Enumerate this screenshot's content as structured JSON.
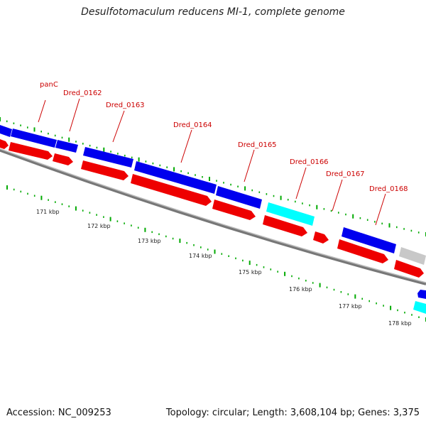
{
  "title": "Desulfotomaculum reducens MI-1, complete genome",
  "footer": {
    "accession": "Accession: NC_009253",
    "summary": "Topology: circular; Length: 3,608,104 bp; Genes: 3,375"
  },
  "gene_labels": [
    "panC",
    "Dred_0162",
    "Dred_0163",
    "Dred_0164",
    "Dred_0165",
    "Dred_0166",
    "Dred_0167",
    "Dred_0168"
  ],
  "kbp_labels": [
    "171 kbp",
    "172 kbp",
    "173 kbp",
    "174 kbp",
    "175 kbp",
    "176 kbp",
    "177 kbp",
    "178 kbp"
  ],
  "colors": {
    "label_red": "#cc0000",
    "cds_blue": "#0000ee",
    "cds_cyan": "#00ffff",
    "cds_gray": "#c8c8c8",
    "gene_red": "#ee0000",
    "backbone": "#888888",
    "tick_green": "#00aa00",
    "kbp_text": "#222222"
  }
}
